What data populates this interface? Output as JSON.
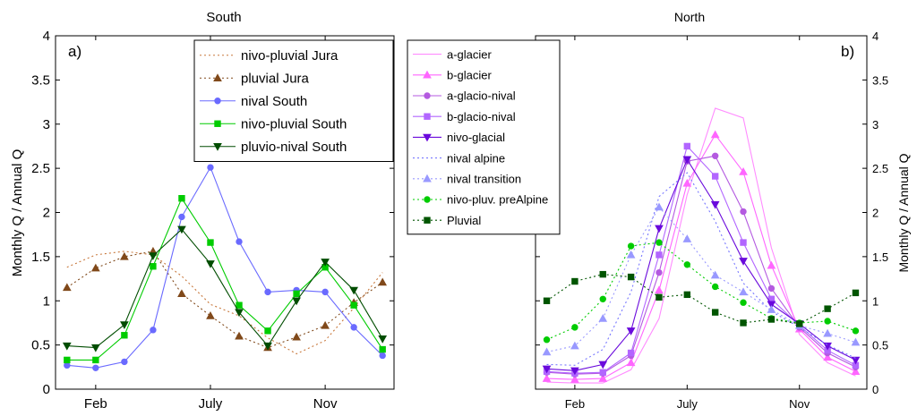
{
  "chart_data": [
    {
      "type": "line",
      "title": "South",
      "panel_label": "a)",
      "xlabel": "",
      "ylabel": "Monthly Q / Annual Q",
      "x": [
        1,
        2,
        3,
        4,
        5,
        6,
        7,
        8,
        9,
        10,
        11,
        12
      ],
      "xlim": [
        0.6,
        12.4
      ],
      "ylim": [
        0,
        4
      ],
      "xticks": [
        {
          "value": 2,
          "label": "Feb"
        },
        {
          "value": 6,
          "label": "July"
        },
        {
          "value": 10,
          "label": "Nov"
        }
      ],
      "yticks": [
        "0",
        "0.5",
        "1",
        "1.5",
        "2",
        "2.5",
        "3",
        "3.5",
        "4"
      ],
      "legend_position": "top-right",
      "series": [
        {
          "name": "nivo-pluvial Jura",
          "color": "#c8783c",
          "dash": "2,3",
          "marker": "none",
          "values": [
            1.38,
            1.52,
            1.56,
            1.52,
            1.28,
            0.96,
            0.83,
            0.58,
            0.4,
            0.55,
            0.92,
            1.32
          ]
        },
        {
          "name": "pluvial Jura",
          "color": "#80491a",
          "dash": "2,3",
          "marker": "triangle-up",
          "values": [
            1.15,
            1.37,
            1.5,
            1.56,
            1.08,
            0.83,
            0.6,
            0.47,
            0.59,
            0.72,
            0.98,
            1.21
          ]
        },
        {
          "name": "nival South",
          "color": "#6a6aff",
          "dash": "",
          "marker": "circle",
          "values": [
            0.27,
            0.24,
            0.31,
            0.67,
            1.95,
            2.51,
            1.67,
            1.1,
            1.12,
            1.1,
            0.7,
            0.38
          ]
        },
        {
          "name": "nivo-pluvial South",
          "color": "#00cc00",
          "dash": "",
          "marker": "square",
          "values": [
            0.33,
            0.33,
            0.61,
            1.39,
            2.16,
            1.66,
            0.95,
            0.66,
            1.08,
            1.38,
            0.95,
            0.45
          ]
        },
        {
          "name": "pluvio-nival South",
          "color": "#004d00",
          "dash": "",
          "marker": "triangle-down",
          "values": [
            0.49,
            0.47,
            0.73,
            1.51,
            1.81,
            1.42,
            0.87,
            0.49,
            1.0,
            1.44,
            1.12,
            0.57
          ]
        }
      ]
    },
    {
      "type": "line",
      "title": "North",
      "panel_label": "b)",
      "xlabel": "",
      "ylabel": "Monthly Q / Annual Q",
      "x": [
        1,
        2,
        3,
        4,
        5,
        6,
        7,
        8,
        9,
        10,
        11,
        12
      ],
      "xlim": [
        0.6,
        12.4
      ],
      "ylim": [
        0,
        4
      ],
      "xticks": [
        {
          "value": 2,
          "label": "Feb"
        },
        {
          "value": 6,
          "label": "July"
        },
        {
          "value": 10,
          "label": "Nov"
        }
      ],
      "yticks": [
        "0",
        "0.5",
        "1",
        "1.5",
        "2",
        "2.5",
        "3",
        "3.5",
        "4"
      ],
      "legend_position": "top-left",
      "series": [
        {
          "name": "a-glacier",
          "color": "#ff8cff",
          "dash": "",
          "marker": "none",
          "values": [
            0.08,
            0.07,
            0.07,
            0.22,
            0.8,
            2.2,
            3.18,
            3.07,
            1.6,
            0.62,
            0.3,
            0.15
          ]
        },
        {
          "name": "b-glacier",
          "color": "#ff66ff",
          "dash": "",
          "marker": "triangle-up",
          "values": [
            0.12,
            0.11,
            0.12,
            0.3,
            1.12,
            2.33,
            2.88,
            2.46,
            1.4,
            0.68,
            0.36,
            0.2
          ]
        },
        {
          "name": "a-glacio-nival",
          "color": "#b45ae0",
          "dash": "",
          "marker": "circle",
          "values": [
            0.19,
            0.17,
            0.18,
            0.38,
            1.32,
            2.58,
            2.64,
            2.01,
            1.14,
            0.7,
            0.41,
            0.25
          ]
        },
        {
          "name": "b-glacio-nival",
          "color": "#b266ff",
          "dash": "",
          "marker": "square",
          "values": [
            0.2,
            0.18,
            0.19,
            0.41,
            1.52,
            2.75,
            2.41,
            1.66,
            1.02,
            0.72,
            0.44,
            0.27
          ]
        },
        {
          "name": "nivo-glacial",
          "color": "#6a0adc",
          "dash": "",
          "marker": "triangle-down",
          "values": [
            0.23,
            0.21,
            0.28,
            0.66,
            1.82,
            2.6,
            2.09,
            1.45,
            0.96,
            0.74,
            0.49,
            0.33
          ]
        },
        {
          "name": "nival alpine",
          "color": "#7777ff",
          "dash": "2,3",
          "marker": "none",
          "values": [
            0.28,
            0.27,
            0.45,
            1.1,
            2.18,
            2.45,
            1.9,
            1.2,
            0.88,
            0.7,
            0.5,
            0.35
          ]
        },
        {
          "name": "nival transition",
          "color": "#9999ff",
          "dash": "2,3",
          "marker": "triangle-up",
          "values": [
            0.42,
            0.49,
            0.8,
            1.52,
            2.06,
            1.7,
            1.29,
            1.1,
            0.9,
            0.72,
            0.63,
            0.53
          ]
        },
        {
          "name": "nivo-pluv. preAlpine",
          "color": "#00cc00",
          "dash": "2,3",
          "marker": "circle",
          "values": [
            0.56,
            0.7,
            1.02,
            1.62,
            1.66,
            1.41,
            1.16,
            0.98,
            0.8,
            0.75,
            0.77,
            0.66
          ]
        },
        {
          "name": "Pluvial",
          "color": "#005500",
          "dash": "2,3",
          "marker": "square",
          "values": [
            1.0,
            1.22,
            1.3,
            1.27,
            1.04,
            1.07,
            0.87,
            0.75,
            0.79,
            0.74,
            0.91,
            1.09
          ]
        }
      ]
    }
  ]
}
